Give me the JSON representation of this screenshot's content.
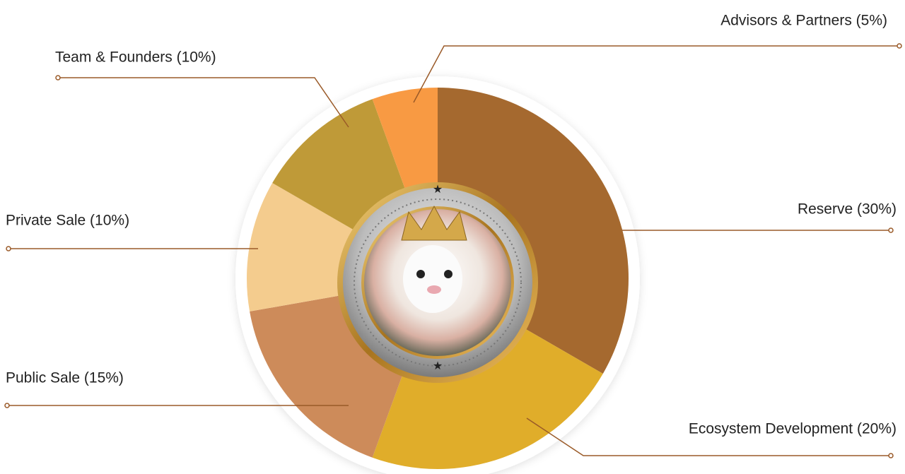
{
  "chart_data": {
    "type": "pie",
    "categories": [
      "Reserve (30%)",
      "Ecosystem Development (20%)",
      "Public Sale (15%)",
      "Private Sale (10%)",
      "Team & Founders (10%)",
      "Advisors & Partners (5%)"
    ],
    "values": [
      30,
      20,
      15,
      10,
      10,
      5
    ],
    "colors": [
      "#a5692f",
      "#e0ad2a",
      "#cd8b5a",
      "#f4cc8e",
      "#bf9a38",
      "#f89a43"
    ]
  }
}
